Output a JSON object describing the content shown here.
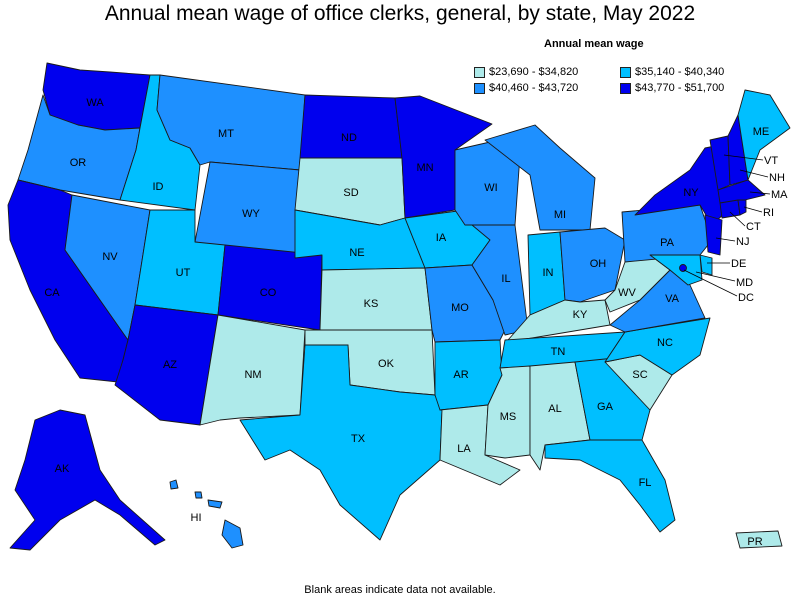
{
  "title": "Annual mean wage of office clerks, general, by state, May 2022",
  "footnote": "Blank areas indicate data not available.",
  "legend": {
    "title": "Annual mean wage",
    "items": [
      {
        "label": "$23,690 - $34,820",
        "color": "#aeeaea"
      },
      {
        "label": "$35,140 - $40,340",
        "color": "#00bfff"
      },
      {
        "label": "$40,460 - $43,720",
        "color": "#1e90ff"
      },
      {
        "label": "$43,770 - $51,700",
        "color": "#0000ee"
      }
    ]
  },
  "states": {
    "WA": {
      "label": "WA",
      "tier": 3
    },
    "OR": {
      "label": "OR",
      "tier": 2
    },
    "CA": {
      "label": "CA",
      "tier": 3
    },
    "ID": {
      "label": "ID",
      "tier": 1
    },
    "NV": {
      "label": "NV",
      "tier": 2
    },
    "MT": {
      "label": "MT",
      "tier": 2
    },
    "WY": {
      "label": "WY",
      "tier": 2
    },
    "UT": {
      "label": "UT",
      "tier": 1
    },
    "AZ": {
      "label": "AZ",
      "tier": 3
    },
    "CO": {
      "label": "CO",
      "tier": 3
    },
    "NM": {
      "label": "NM",
      "tier": 0
    },
    "ND": {
      "label": "ND",
      "tier": 3
    },
    "SD": {
      "label": "SD",
      "tier": 0
    },
    "NE": {
      "label": "NE",
      "tier": 1
    },
    "KS": {
      "label": "KS",
      "tier": 0
    },
    "OK": {
      "label": "OK",
      "tier": 0
    },
    "TX": {
      "label": "TX",
      "tier": 1
    },
    "MN": {
      "label": "MN",
      "tier": 3
    },
    "IA": {
      "label": "IA",
      "tier": 1
    },
    "MO": {
      "label": "MO",
      "tier": 2
    },
    "AR": {
      "label": "AR",
      "tier": 1
    },
    "LA": {
      "label": "LA",
      "tier": 0
    },
    "WI": {
      "label": "WI",
      "tier": 2
    },
    "IL": {
      "label": "IL",
      "tier": 2
    },
    "MI": {
      "label": "MI",
      "tier": 2
    },
    "IN": {
      "label": "IN",
      "tier": 1
    },
    "OH": {
      "label": "OH",
      "tier": 2
    },
    "KY": {
      "label": "KY",
      "tier": 0
    },
    "TN": {
      "label": "TN",
      "tier": 1
    },
    "MS": {
      "label": "MS",
      "tier": 0
    },
    "AL": {
      "label": "AL",
      "tier": 0
    },
    "GA": {
      "label": "GA",
      "tier": 1
    },
    "FL": {
      "label": "FL",
      "tier": 1
    },
    "SC": {
      "label": "SC",
      "tier": 0
    },
    "NC": {
      "label": "NC",
      "tier": 1
    },
    "VA": {
      "label": "VA",
      "tier": 2
    },
    "WV": {
      "label": "WV",
      "tier": 0
    },
    "PA": {
      "label": "PA",
      "tier": 2
    },
    "NY": {
      "label": "NY",
      "tier": 3
    },
    "ME": {
      "label": "ME",
      "tier": 1
    },
    "VT": {
      "label": "VT",
      "tier": 3
    },
    "NH": {
      "label": "NH",
      "tier": 3
    },
    "MA": {
      "label": "MA",
      "tier": 3
    },
    "RI": {
      "label": "RI",
      "tier": 3
    },
    "CT": {
      "label": "CT",
      "tier": 3
    },
    "NJ": {
      "label": "NJ",
      "tier": 3
    },
    "DE": {
      "label": "DE",
      "tier": 1
    },
    "MD": {
      "label": "MD",
      "tier": 1
    },
    "DC": {
      "label": "DC",
      "tier": 3
    },
    "AK": {
      "label": "AK",
      "tier": 3
    },
    "HI": {
      "label": "HI",
      "tier": 2
    },
    "PR": {
      "label": "PR",
      "tier": 0
    }
  }
}
